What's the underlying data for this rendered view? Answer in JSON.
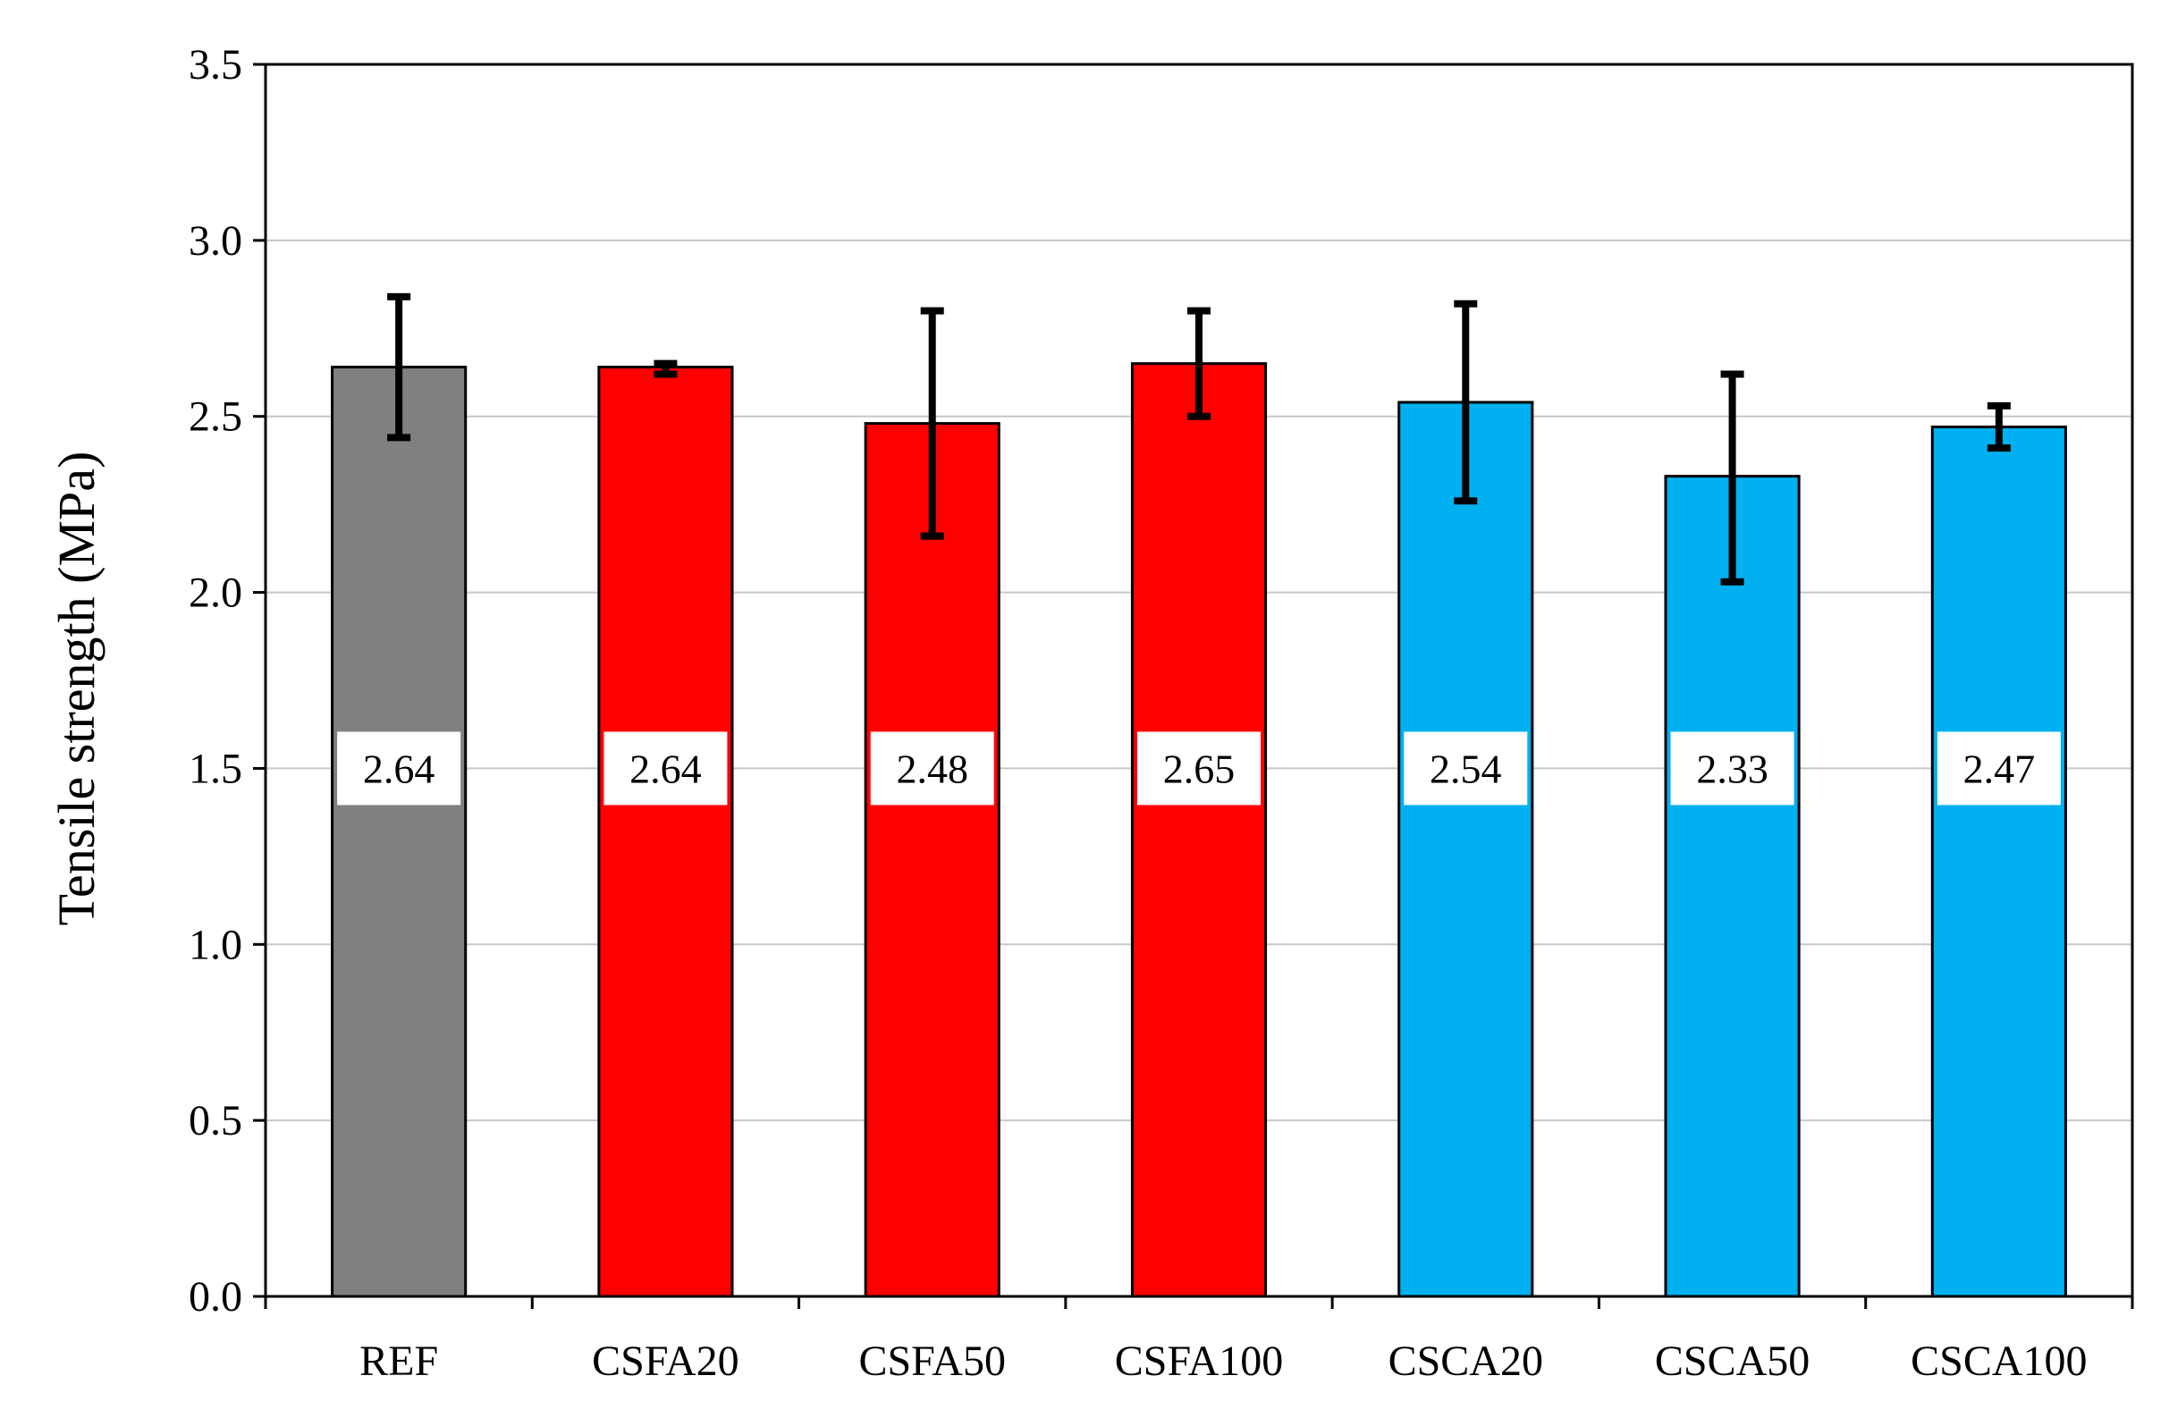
{
  "chart_data": {
    "type": "bar",
    "title": "",
    "xlabel": "",
    "ylabel": "Tensile strength (MPa)",
    "ylim": [
      0,
      3.5
    ],
    "yticks": [
      "0.0",
      "0.5",
      "1.0",
      "1.5",
      "2.0",
      "2.5",
      "3.0",
      "3.5"
    ],
    "grid": true,
    "categories": [
      "REF",
      "CSFA20",
      "CSFA50",
      "CSFA100",
      "CSCA20",
      "CSCA50",
      "CSCA100"
    ],
    "values": [
      2.64,
      2.64,
      2.48,
      2.65,
      2.54,
      2.33,
      2.47
    ],
    "data_labels": [
      "2.64",
      "2.64",
      "2.48",
      "2.65",
      "2.54",
      "2.33",
      "2.47"
    ],
    "error_low": [
      2.44,
      2.62,
      2.16,
      2.5,
      2.26,
      2.03,
      2.41
    ],
    "error_high": [
      2.84,
      2.65,
      2.8,
      2.8,
      2.82,
      2.62,
      2.53
    ],
    "colors": [
      "#808080",
      "#ff0000",
      "#ff0000",
      "#ff0000",
      "#00b0f0",
      "#00b0f0",
      "#00b0f0"
    ]
  }
}
